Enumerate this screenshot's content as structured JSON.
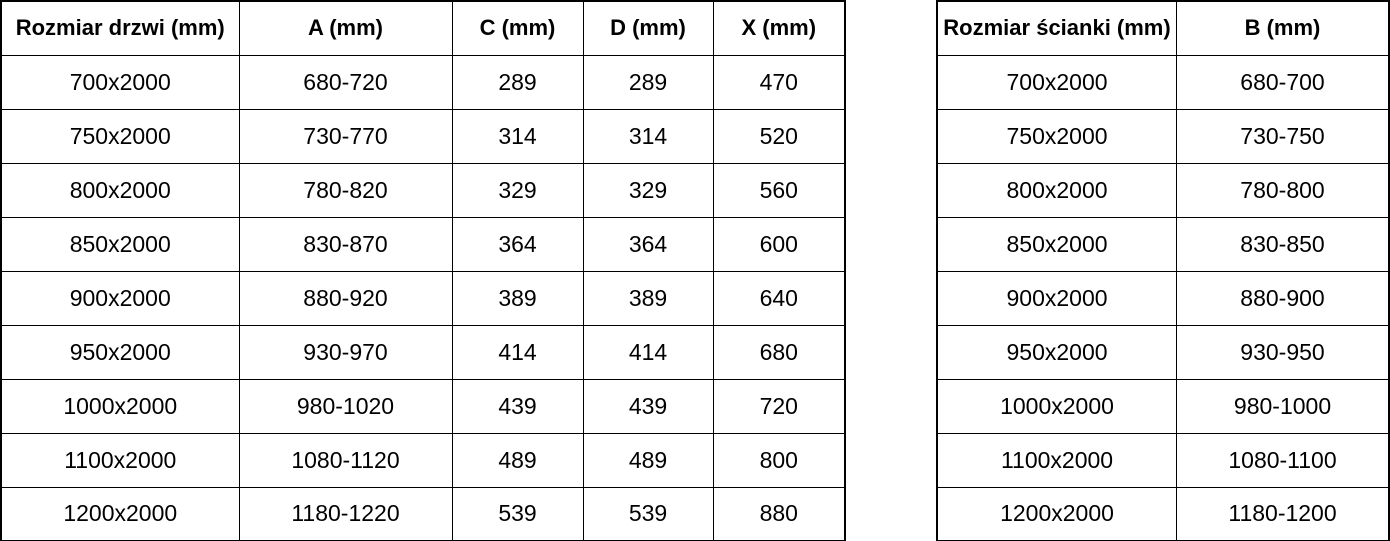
{
  "colors": {
    "border": "#000000",
    "text": "#000000",
    "background": "#ffffff"
  },
  "door_table": {
    "headers": [
      "Rozmiar drzwi (mm)",
      "A (mm)",
      "C (mm)",
      "D (mm)",
      "X (mm)"
    ],
    "rows": [
      [
        "700x2000",
        "680-720",
        "289",
        "289",
        "470"
      ],
      [
        "750x2000",
        "730-770",
        "314",
        "314",
        "520"
      ],
      [
        "800x2000",
        "780-820",
        "329",
        "329",
        "560"
      ],
      [
        "850x2000",
        "830-870",
        "364",
        "364",
        "600"
      ],
      [
        "900x2000",
        "880-920",
        "389",
        "389",
        "640"
      ],
      [
        "950x2000",
        "930-970",
        "414",
        "414",
        "680"
      ],
      [
        "1000x2000",
        "980-1020",
        "439",
        "439",
        "720"
      ],
      [
        "1100x2000",
        "1080-1120",
        "489",
        "489",
        "800"
      ],
      [
        "1200x2000",
        "1180-1220",
        "539",
        "539",
        "880"
      ]
    ]
  },
  "wall_table": {
    "headers": [
      "Rozmiar ścianki (mm)",
      "B (mm)"
    ],
    "rows": [
      [
        "700x2000",
        "680-700"
      ],
      [
        "750x2000",
        "730-750"
      ],
      [
        "800x2000",
        "780-800"
      ],
      [
        "850x2000",
        "830-850"
      ],
      [
        "900x2000",
        "880-900"
      ],
      [
        "950x2000",
        "930-950"
      ],
      [
        "1000x2000",
        "980-1000"
      ],
      [
        "1100x2000",
        "1080-1100"
      ],
      [
        "1200x2000",
        "1180-1200"
      ]
    ]
  }
}
